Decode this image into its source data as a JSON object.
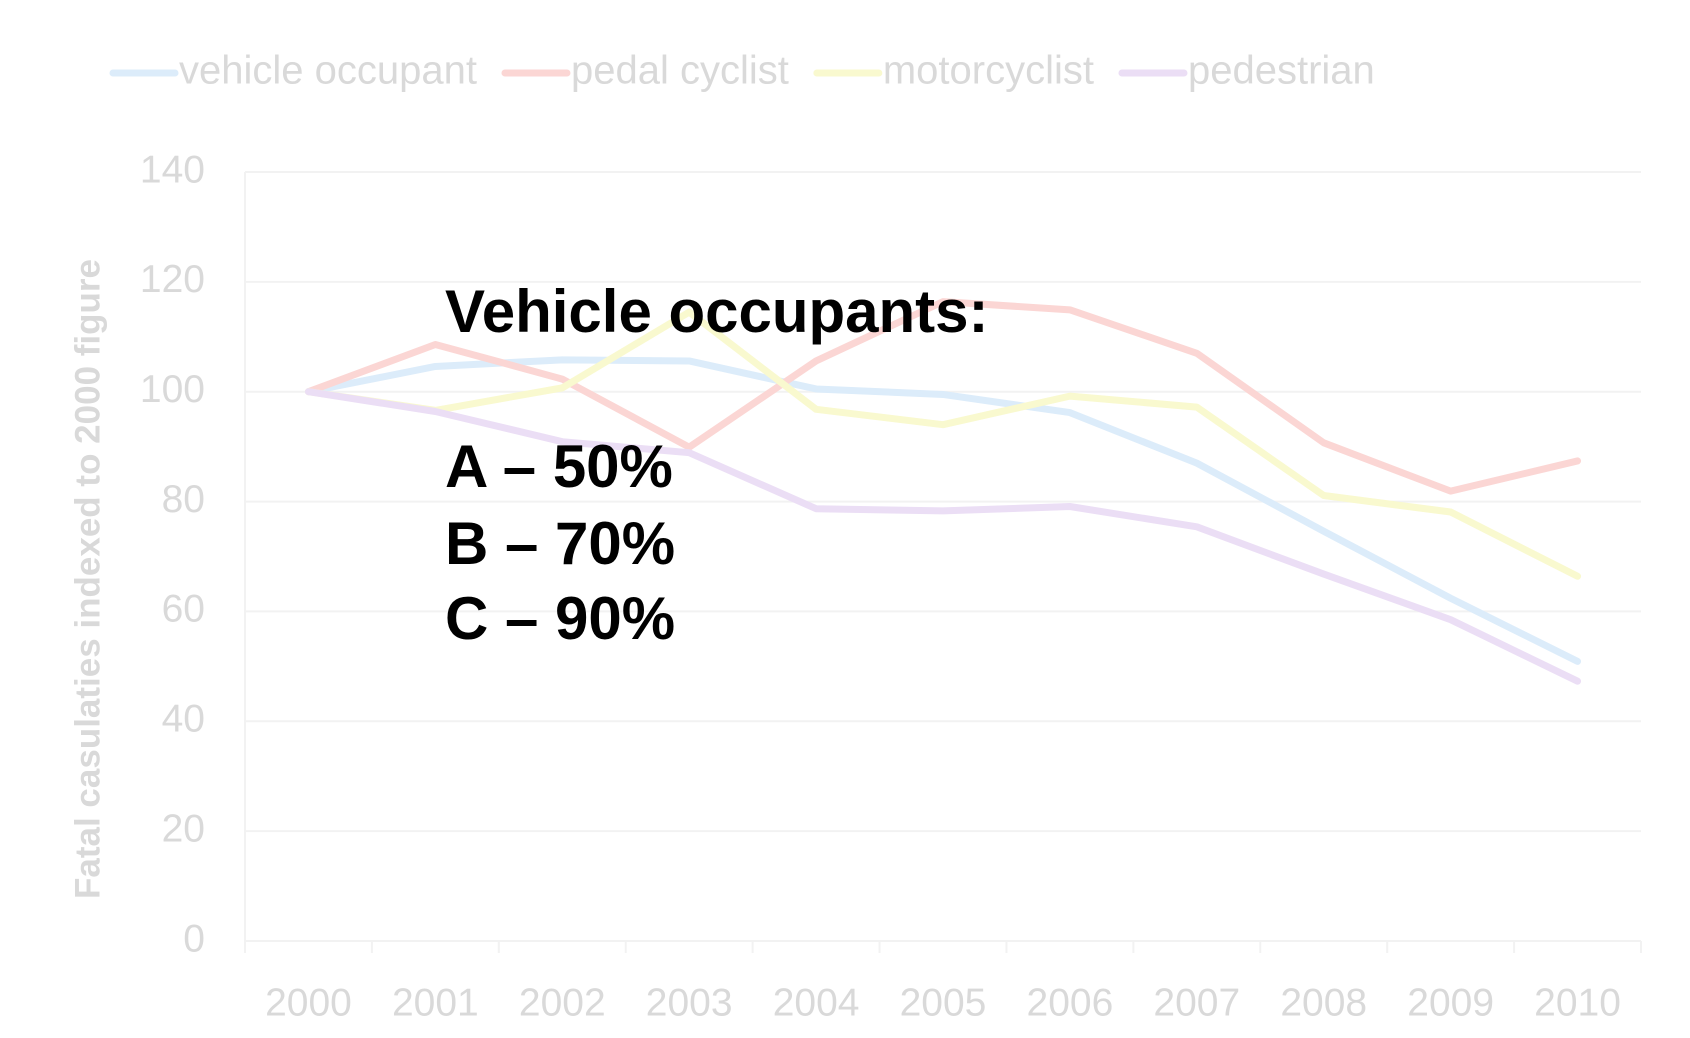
{
  "chart_data": {
    "type": "line",
    "y_label": "Fatal casulaties indexed to 2000 figure",
    "categories": [
      "2000",
      "2001",
      "2002",
      "2003",
      "2004",
      "2005",
      "2006",
      "2007",
      "2008",
      "2009",
      "2010"
    ],
    "series": [
      {
        "name": "vehicle occupant",
        "color": "#dcecfa",
        "values": [
          100,
          104.6,
          105.8,
          105.6,
          100.5,
          99.5,
          96.2,
          87,
          74.6,
          62.4,
          50.9
        ]
      },
      {
        "name": "pedal cyclist",
        "color": "#fbd6d4",
        "values": [
          100,
          108.6,
          102.3,
          89.9,
          105.6,
          116.4,
          114.9,
          107,
          90.7,
          81.9,
          87.4
        ]
      },
      {
        "name": "motorcyclist",
        "color": "#f9f9cf",
        "values": [
          100,
          96.6,
          100.7,
          114.5,
          96.8,
          94,
          99.2,
          97.2,
          81.1,
          78.1,
          66.4
        ]
      },
      {
        "name": "pedestrian",
        "color": "#ebdef5",
        "values": [
          100,
          96.4,
          90.9,
          88.9,
          78.7,
          78.3,
          79.1,
          75.4,
          66.8,
          58.5,
          47.3
        ]
      }
    ],
    "ylim": [
      0,
      140
    ],
    "yticks": [
      0,
      20,
      40,
      60,
      80,
      100,
      120,
      140
    ],
    "grid": true,
    "legend": "top",
    "annotations": [
      "Vehicle occupants:",
      "A – 50%",
      "B – 70%",
      "C – 90%"
    ]
  }
}
